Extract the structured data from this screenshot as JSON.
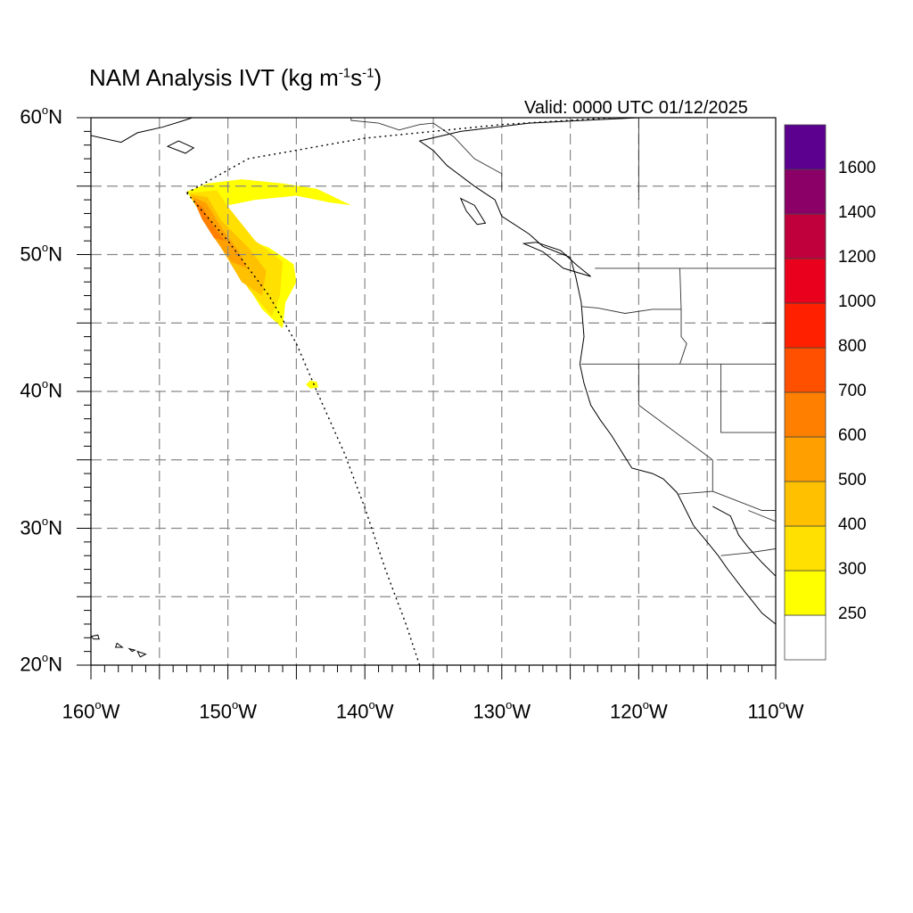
{
  "title": {
    "main": "NAM Analysis IVT (kg m",
    "exp1": "-1",
    "mid": "s",
    "exp2": "-1",
    "end": ")"
  },
  "valid_label": "Valid: 0000 UTC 01/12/2025",
  "map": {
    "lon_range": [
      -160,
      -110
    ],
    "lat_range": [
      20,
      60
    ],
    "gridlines": "dashed gray every 5 degrees",
    "lat_labels": [
      {
        "lat": 60,
        "text": "60",
        "hemi": "N"
      },
      {
        "lat": 50,
        "text": "50",
        "hemi": "N"
      },
      {
        "lat": 40,
        "text": "40",
        "hemi": "N"
      },
      {
        "lat": 30,
        "text": "30",
        "hemi": "N"
      },
      {
        "lat": 20,
        "text": "20",
        "hemi": "N"
      }
    ],
    "lon_labels": [
      {
        "lon": -160,
        "text": "160",
        "hemi": "W"
      },
      {
        "lon": -150,
        "text": "150",
        "hemi": "W"
      },
      {
        "lon": -140,
        "text": "140",
        "hemi": "W"
      },
      {
        "lon": -130,
        "text": "130",
        "hemi": "W"
      },
      {
        "lon": -120,
        "text": "120",
        "hemi": "W"
      },
      {
        "lon": -110,
        "text": "110",
        "hemi": "W"
      }
    ],
    "domain_boundary": [
      [
        -153.0,
        54.5
      ],
      [
        -148.5,
        57.0
      ],
      [
        -140.0,
        58.5
      ],
      [
        -130.0,
        59.5
      ],
      [
        -122.0,
        60.0
      ]
    ],
    "domain_boundary_west": [
      [
        -153.0,
        54.5
      ],
      [
        -150.0,
        51.0
      ],
      [
        -147.0,
        47.0
      ],
      [
        -145.0,
        43.5
      ],
      [
        -143.5,
        40.0
      ],
      [
        -141.5,
        35.5
      ],
      [
        -140.0,
        31.5
      ],
      [
        -138.5,
        27.0
      ],
      [
        -137.0,
        23.0
      ],
      [
        -136.0,
        20.0
      ]
    ]
  },
  "ivt_plume": [
    {
      "level": 300,
      "color": "#ffff00",
      "poly": [
        [
          -153.0,
          54.6
        ],
        [
          -151.5,
          55.2
        ],
        [
          -149.0,
          55.5
        ],
        [
          -146.0,
          55.2
        ],
        [
          -143.5,
          54.8
        ],
        [
          -141.0,
          53.6
        ],
        [
          -142.5,
          53.8
        ],
        [
          -145.0,
          54.3
        ],
        [
          -148.0,
          54.0
        ],
        [
          -150.5,
          53.5
        ],
        [
          -149.5,
          51.5
        ],
        [
          -147.0,
          50.5
        ],
        [
          -145.2,
          49.3
        ],
        [
          -145.0,
          48.0
        ],
        [
          -145.8,
          46.5
        ],
        [
          -146.0,
          44.6
        ],
        [
          -147.5,
          46.0
        ],
        [
          -150.0,
          50.0
        ],
        [
          -152.0,
          53.0
        ]
      ]
    },
    {
      "level": 350,
      "color": "#ffe000",
      "poly": [
        [
          -152.8,
          54.5
        ],
        [
          -150.8,
          54.7
        ],
        [
          -150.0,
          53.5
        ],
        [
          -148.0,
          51.0
        ],
        [
          -146.0,
          49.5
        ],
        [
          -146.2,
          47.0
        ],
        [
          -146.8,
          45.5
        ],
        [
          -148.5,
          47.5
        ],
        [
          -150.5,
          51.0
        ],
        [
          -152.0,
          53.2
        ]
      ]
    },
    {
      "level": 450,
      "color": "#ffc000",
      "poly": [
        [
          -152.8,
          54.4
        ],
        [
          -151.5,
          54.2
        ],
        [
          -150.5,
          52.5
        ],
        [
          -148.5,
          50.5
        ],
        [
          -147.2,
          48.8
        ],
        [
          -147.5,
          47.0
        ],
        [
          -149.0,
          48.0
        ],
        [
          -150.8,
          51.0
        ],
        [
          -152.0,
          53.0
        ]
      ]
    },
    {
      "level": 550,
      "color": "#ffa000",
      "poly": [
        [
          -152.6,
          54.2
        ],
        [
          -151.6,
          53.8
        ],
        [
          -150.5,
          52.0
        ],
        [
          -149.2,
          50.2
        ],
        [
          -148.6,
          49.0
        ],
        [
          -149.8,
          49.5
        ],
        [
          -151.2,
          51.5
        ],
        [
          -152.2,
          53.3
        ]
      ]
    },
    {
      "level": 650,
      "color": "#ff7f00",
      "poly": [
        [
          -152.5,
          54.0
        ],
        [
          -151.9,
          53.5
        ],
        [
          -151.0,
          52.0
        ],
        [
          -150.2,
          51.0
        ],
        [
          -151.0,
          51.2
        ],
        [
          -151.9,
          52.6
        ]
      ]
    },
    {
      "level": 300,
      "color": "#ffff00",
      "poly": [
        [
          -144.0,
          40.8
        ],
        [
          -143.5,
          40.7
        ],
        [
          -143.4,
          40.3
        ],
        [
          -144.0,
          40.2
        ],
        [
          -144.3,
          40.5
        ]
      ]
    }
  ],
  "colorbar": {
    "colors": [
      "#ffffff",
      "#ffff00",
      "#ffe000",
      "#ffc000",
      "#ffa000",
      "#ff7f00",
      "#ff5000",
      "#ff2000",
      "#e8001c",
      "#c0003c",
      "#8b0066",
      "#5c0090"
    ],
    "labels": [
      "250",
      "300",
      "400",
      "500",
      "600",
      "700",
      "800",
      "1000",
      "1200",
      "1400",
      "1600"
    ]
  },
  "coastlines": {
    "north_america": [
      [
        -110.0,
        60.0
      ],
      [
        -120.0,
        60.0
      ],
      [
        -128.0,
        59.6
      ],
      [
        -133.0,
        59.0
      ],
      [
        -136.0,
        58.3
      ],
      [
        -135.0,
        57.6
      ],
      [
        -134.0,
        56.5
      ],
      [
        -132.0,
        55.0
      ],
      [
        -130.5,
        54.0
      ],
      [
        -130.0,
        52.8
      ],
      [
        -128.0,
        51.5
      ],
      [
        -127.0,
        50.6
      ],
      [
        -125.0,
        49.8
      ],
      [
        -124.6,
        48.4
      ],
      [
        -124.2,
        46.5
      ],
      [
        -124.0,
        44.0
      ],
      [
        -124.3,
        42.0
      ],
      [
        -124.0,
        40.6
      ],
      [
        -123.5,
        39.0
      ],
      [
        -122.8,
        37.9
      ],
      [
        -122.0,
        36.8
      ],
      [
        -121.0,
        35.2
      ],
      [
        -120.5,
        34.4
      ],
      [
        -119.0,
        34.0
      ],
      [
        -118.2,
        33.6
      ],
      [
        -117.2,
        32.6
      ],
      [
        -116.8,
        31.8
      ],
      [
        -116.0,
        30.2
      ],
      [
        -115.0,
        29.0
      ],
      [
        -114.2,
        28.0
      ],
      [
        -113.5,
        27.0
      ],
      [
        -112.2,
        25.3
      ],
      [
        -111.0,
        23.8
      ],
      [
        -110.0,
        23.0
      ]
    ],
    "gulf_of_california": [
      [
        -114.6,
        31.6
      ],
      [
        -113.3,
        30.9
      ],
      [
        -112.7,
        29.5
      ],
      [
        -112.0,
        28.6
      ],
      [
        -111.0,
        27.5
      ],
      [
        -110.0,
        26.5
      ]
    ],
    "vancouver_island": [
      [
        -128.4,
        50.8
      ],
      [
        -127.0,
        50.2
      ],
      [
        -125.5,
        49.0
      ],
      [
        -123.5,
        48.4
      ],
      [
        -124.5,
        49.2
      ],
      [
        -125.7,
        50.3
      ],
      [
        -127.5,
        50.9
      ]
    ],
    "haida_gwaii": [
      [
        -133.0,
        54.1
      ],
      [
        -132.0,
        53.6
      ],
      [
        -131.2,
        52.3
      ],
      [
        -131.8,
        52.2
      ],
      [
        -132.6,
        53.2
      ]
    ],
    "alaska_sw": [
      [
        -160.0,
        58.7
      ],
      [
        -157.8,
        58.2
      ],
      [
        -156.6,
        58.9
      ],
      [
        -154.8,
        59.3
      ],
      [
        -153.2,
        59.8
      ],
      [
        -152.6,
        60.0
      ]
    ],
    "kodiak": [
      [
        -154.4,
        57.9
      ],
      [
        -153.1,
        57.4
      ],
      [
        -152.5,
        57.8
      ],
      [
        -153.6,
        58.3
      ]
    ],
    "hawaii": [
      [
        [
          -160.0,
          22.1
        ],
        [
          -159.5,
          22.2
        ],
        [
          -159.4,
          21.9
        ],
        [
          -159.8,
          21.9
        ]
      ],
      [
        [
          -158.1,
          21.6
        ],
        [
          -157.7,
          21.3
        ],
        [
          -158.2,
          21.3
        ]
      ],
      [
        [
          -157.2,
          21.2
        ],
        [
          -156.8,
          21.1
        ],
        [
          -157.0,
          21.0
        ]
      ],
      [
        [
          -156.6,
          21.0
        ],
        [
          -156.0,
          20.8
        ],
        [
          -156.4,
          20.6
        ]
      ]
    ]
  },
  "borders": [
    [
      [
        -141.0,
        60.0
      ],
      [
        -141.0,
        59.8
      ],
      [
        -139.0,
        59.6
      ],
      [
        -137.5,
        59.1
      ],
      [
        -136.0,
        59.5
      ],
      [
        -135.0,
        59.6
      ],
      [
        -133.5,
        58.6
      ],
      [
        -132.0,
        57.0
      ],
      [
        -130.0,
        55.9
      ],
      [
        -130.0,
        54.7
      ]
    ],
    [
      [
        -123.2,
        49.0
      ],
      [
        -110.0,
        49.0
      ]
    ],
    [
      [
        -124.2,
        46.2
      ],
      [
        -123.0,
        46.1
      ],
      [
        -121.0,
        45.7
      ],
      [
        -119.0,
        46.0
      ],
      [
        -116.9,
        46.0
      ],
      [
        -117.0,
        49.0
      ]
    ],
    [
      [
        -124.2,
        42.0
      ],
      [
        -110.0,
        42.0
      ]
    ],
    [
      [
        -120.0,
        42.0
      ],
      [
        -120.0,
        39.0
      ],
      [
        -114.6,
        35.0
      ]
    ],
    [
      [
        -114.6,
        35.0
      ],
      [
        -114.6,
        32.7
      ],
      [
        -117.1,
        32.5
      ]
    ],
    [
      [
        -114.6,
        32.7
      ],
      [
        -111.0,
        31.3
      ],
      [
        -110.0,
        31.3
      ]
    ],
    [
      [
        -114.0,
        42.0
      ],
      [
        -114.0,
        37.0
      ],
      [
        -110.0,
        37.0
      ]
    ],
    [
      [
        -111.0,
        45.0
      ],
      [
        -110.0,
        45.0
      ]
    ],
    [
      [
        -116.9,
        46.0
      ],
      [
        -116.9,
        44.0
      ],
      [
        -116.5,
        43.5
      ],
      [
        -117.0,
        42.0
      ]
    ],
    [
      [
        -120.0,
        60.0
      ],
      [
        -120.0,
        54.0
      ]
    ],
    [
      [
        -112.0,
        31.3
      ],
      [
        -110.0,
        30.5
      ]
    ],
    [
      [
        -114.0,
        28.0
      ],
      [
        -112.0,
        28.2
      ],
      [
        -110.0,
        28.5
      ]
    ]
  ]
}
